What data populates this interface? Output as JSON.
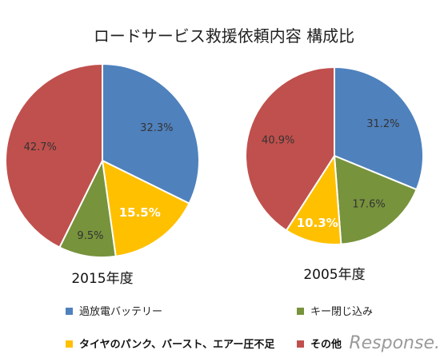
{
  "chart_data": [
    {
      "type": "pie",
      "label": "2015年度",
      "slices": [
        {
          "name": "過放電バッテリー",
          "value": 32.3,
          "label": "32.3%",
          "color": "#4f81bd",
          "highlight": false
        },
        {
          "name": "タイヤのパンク、バースト、エアー圧不足",
          "value": 15.5,
          "label": "15.5%",
          "color": "#ffc000",
          "highlight": true
        },
        {
          "name": "キー閉じ込み",
          "value": 9.5,
          "label": "9.5%",
          "color": "#77933c",
          "highlight": false
        },
        {
          "name": "その他",
          "value": 42.7,
          "label": "42.7%",
          "color": "#c0504d",
          "highlight": false
        }
      ]
    },
    {
      "type": "pie",
      "label": "2005年度",
      "slices": [
        {
          "name": "過放電バッテリー",
          "value": 31.2,
          "label": "31.2%",
          "color": "#4f81bd",
          "highlight": false
        },
        {
          "name": "キー閉じ込み",
          "value": 17.6,
          "label": "17.6%",
          "color": "#77933c",
          "highlight": false
        },
        {
          "name": "タイヤのパンク、バースト、エアー圧不足",
          "value": 10.3,
          "label": "10.3%",
          "color": "#ffc000",
          "highlight": true
        },
        {
          "name": "その他",
          "value": 40.9,
          "label": "40.9%",
          "color": "#c0504d",
          "highlight": false
        }
      ]
    }
  ],
  "title": "ロードサービス救援依頼内容 構成比",
  "legend": [
    {
      "label": "過放電バッテリー",
      "color": "#4f81bd",
      "bold": false
    },
    {
      "label": "キー閉じ込み",
      "color": "#77933c",
      "bold": false
    },
    {
      "label": "タイヤのパンク、バースト、エアー圧不足",
      "color": "#ffc000",
      "bold": true
    },
    {
      "label": "その他",
      "color": "#c0504d",
      "bold": true
    }
  ],
  "watermark": "Response."
}
